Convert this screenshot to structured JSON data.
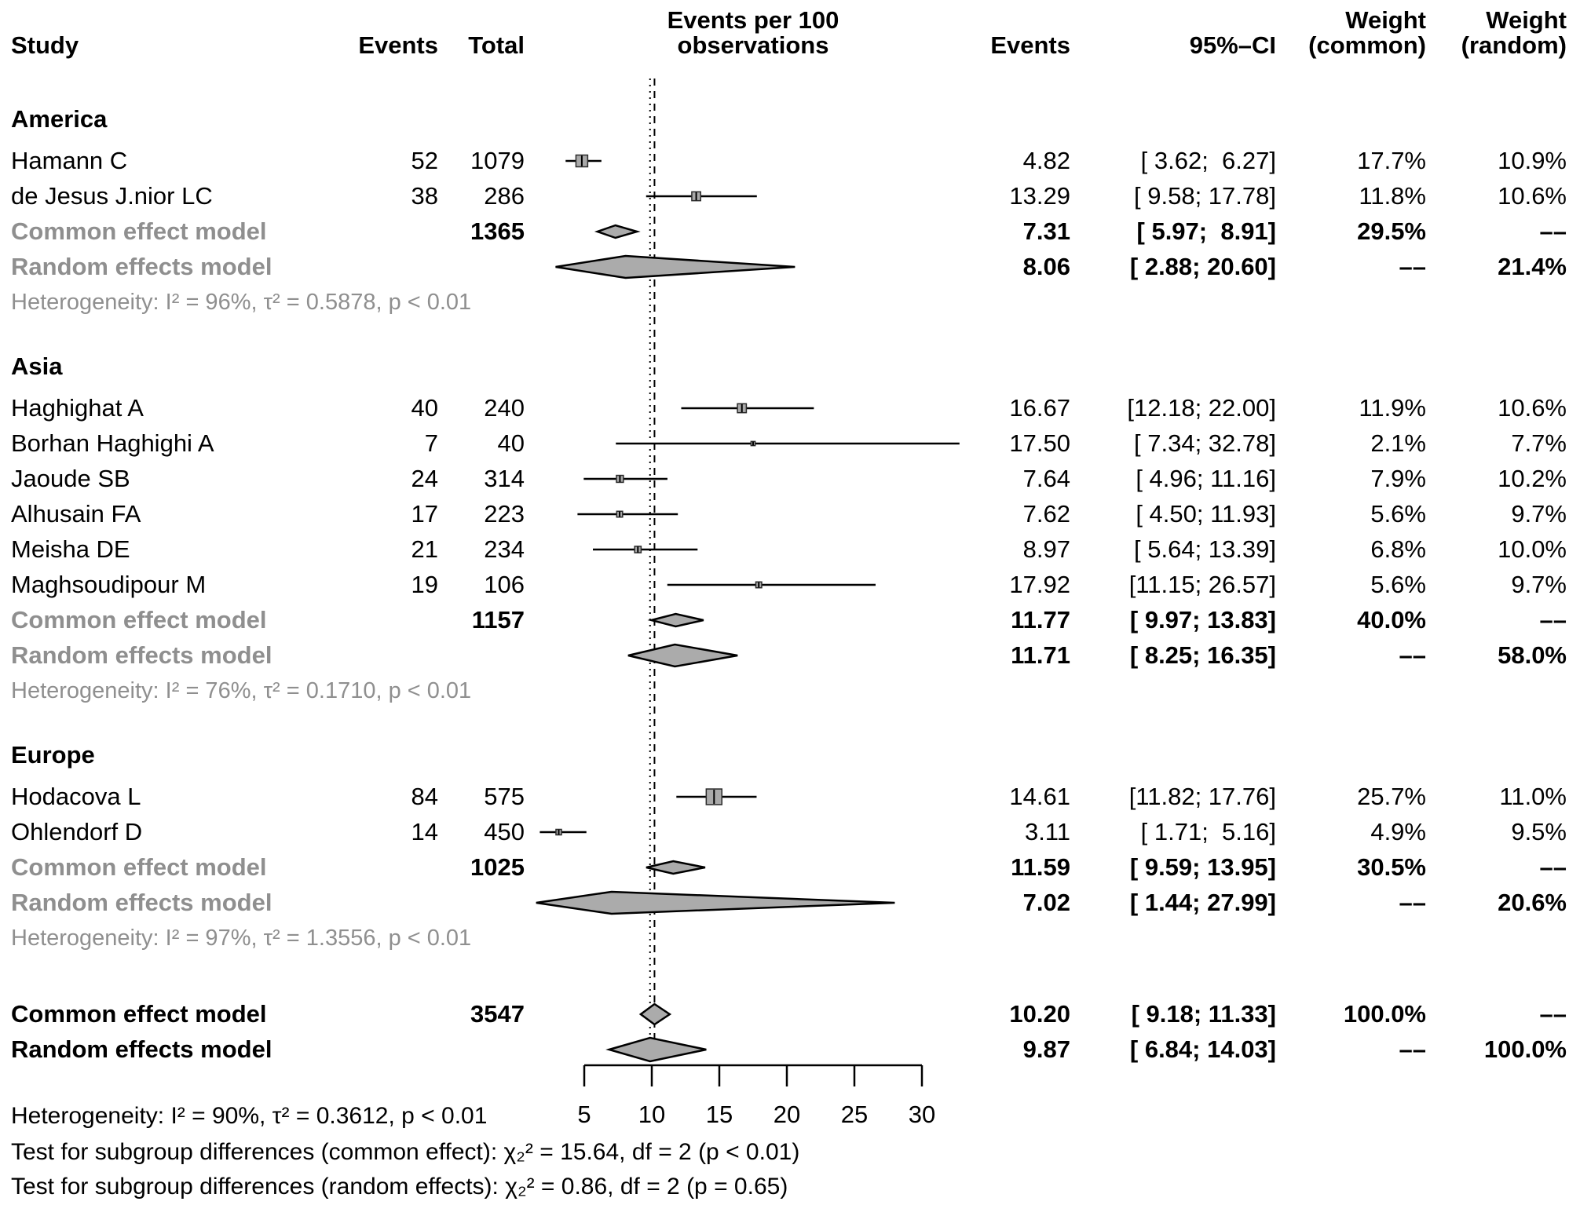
{
  "header": {
    "study": "Study",
    "events_left": "Events",
    "total": "Total",
    "plot_line1": "Events per 100",
    "plot_line2": "observations",
    "events_right": "Events",
    "ci": "95%–CI",
    "weight_common_line1": "Weight",
    "weight_common_line2": "(common)",
    "weight_random_line1": "Weight",
    "weight_random_line2": "(random)"
  },
  "footer": {
    "heterogeneity": "Heterogeneity: I² = 90%, τ² = 0.3612, p < 0.01",
    "test_common": "Test for subgroup differences (common effect): χ₂² = 15.64, df = 2 (p < 0.01)",
    "test_random": "Test for subgroup differences (random effects): χ₂² = 0.86, df = 2 (p = 0.65)"
  },
  "chart_data": {
    "type": "scatter",
    "variant": "forest-plot",
    "title": "Events per 100 observations",
    "xlabel": "Events per 100 observations",
    "x_ticks": [
      5,
      10,
      15,
      20,
      25,
      30
    ],
    "x_range": [
      5,
      30
    ],
    "grid": false,
    "legend": "none",
    "reference_lines": [
      {
        "value": 9.87,
        "style": "dotted",
        "meaning": "random effects overall estimate"
      },
      {
        "value": 10.2,
        "style": "dashed",
        "meaning": "common effect overall estimate"
      }
    ],
    "marker_color": "#a9a9a9",
    "diamond_color": "#ababab",
    "rows": [
      {
        "type": "group",
        "label": "America"
      },
      {
        "type": "study",
        "label": "Hamann C",
        "events": "52",
        "total": "1079",
        "effect": 4.82,
        "lo": 3.62,
        "hi": 6.27,
        "effect_str": "4.82",
        "ci_str": "[ 3.62;  6.27]",
        "wc": "17.7%",
        "wr": "10.9%"
      },
      {
        "type": "study",
        "label": "de Jesus J.nior LC",
        "events": "38",
        "total": "286",
        "effect": 13.29,
        "lo": 9.58,
        "hi": 17.78,
        "effect_str": "13.29",
        "ci_str": "[ 9.58; 17.78]",
        "wc": "11.8%",
        "wr": "10.6%"
      },
      {
        "type": "pooled-common",
        "scope": "subgroup",
        "label": "Common effect model",
        "total": "1365",
        "effect": 7.31,
        "lo": 5.97,
        "hi": 8.91,
        "effect_str": "7.31",
        "ci_str": "[ 5.97;  8.91]",
        "wc": "29.5%",
        "wr": "––"
      },
      {
        "type": "pooled-random",
        "scope": "subgroup",
        "label": "Random effects model",
        "effect": 8.06,
        "lo": 2.88,
        "hi": 20.6,
        "effect_str": "8.06",
        "ci_str": "[ 2.88; 20.60]",
        "wc": "––",
        "wr": "21.4%"
      },
      {
        "type": "het",
        "label": "Heterogeneity: I² = 96%, τ² = 0.5878, p < 0.01"
      },
      {
        "type": "group",
        "label": "Asia"
      },
      {
        "type": "study",
        "label": "Haghighat A",
        "events": "40",
        "total": "240",
        "effect": 16.67,
        "lo": 12.18,
        "hi": 22.0,
        "effect_str": "16.67",
        "ci_str": "[12.18; 22.00]",
        "wc": "11.9%",
        "wr": "10.6%"
      },
      {
        "type": "study",
        "label": "Borhan Haghighi A",
        "events": "7",
        "total": "40",
        "effect": 17.5,
        "lo": 7.34,
        "hi": 32.78,
        "effect_str": "17.50",
        "ci_str": "[ 7.34; 32.78]",
        "wc": "2.1%",
        "wr": "7.7%"
      },
      {
        "type": "study",
        "label": "Jaoude SB",
        "events": "24",
        "total": "314",
        "effect": 7.64,
        "lo": 4.96,
        "hi": 11.16,
        "effect_str": "7.64",
        "ci_str": "[ 4.96; 11.16]",
        "wc": "7.9%",
        "wr": "10.2%"
      },
      {
        "type": "study",
        "label": "Alhusain FA",
        "events": "17",
        "total": "223",
        "effect": 7.62,
        "lo": 4.5,
        "hi": 11.93,
        "effect_str": "7.62",
        "ci_str": "[ 4.50; 11.93]",
        "wc": "5.6%",
        "wr": "9.7%"
      },
      {
        "type": "study",
        "label": "Meisha DE",
        "events": "21",
        "total": "234",
        "effect": 8.97,
        "lo": 5.64,
        "hi": 13.39,
        "effect_str": "8.97",
        "ci_str": "[ 5.64; 13.39]",
        "wc": "6.8%",
        "wr": "10.0%"
      },
      {
        "type": "study",
        "label": "Maghsoudipour M",
        "events": "19",
        "total": "106",
        "effect": 17.92,
        "lo": 11.15,
        "hi": 26.57,
        "effect_str": "17.92",
        "ci_str": "[11.15; 26.57]",
        "wc": "5.6%",
        "wr": "9.7%"
      },
      {
        "type": "pooled-common",
        "scope": "subgroup",
        "label": "Common effect model",
        "total": "1157",
        "effect": 11.77,
        "lo": 9.97,
        "hi": 13.83,
        "effect_str": "11.77",
        "ci_str": "[ 9.97; 13.83]",
        "wc": "40.0%",
        "wr": "––"
      },
      {
        "type": "pooled-random",
        "scope": "subgroup",
        "label": "Random effects model",
        "effect": 11.71,
        "lo": 8.25,
        "hi": 16.35,
        "effect_str": "11.71",
        "ci_str": "[ 8.25; 16.35]",
        "wc": "––",
        "wr": "58.0%"
      },
      {
        "type": "het",
        "label": "Heterogeneity: I² = 76%, τ² = 0.1710, p < 0.01"
      },
      {
        "type": "group",
        "label": "Europe"
      },
      {
        "type": "study",
        "label": "Hodacova L",
        "events": "84",
        "total": "575",
        "effect": 14.61,
        "lo": 11.82,
        "hi": 17.76,
        "effect_str": "14.61",
        "ci_str": "[11.82; 17.76]",
        "wc": "25.7%",
        "wr": "11.0%"
      },
      {
        "type": "study",
        "label": "Ohlendorf D",
        "events": "14",
        "total": "450",
        "effect": 3.11,
        "lo": 1.71,
        "hi": 5.16,
        "effect_str": "3.11",
        "ci_str": "[ 1.71;  5.16]",
        "wc": "4.9%",
        "wr": "9.5%"
      },
      {
        "type": "pooled-common",
        "scope": "subgroup",
        "label": "Common effect model",
        "total": "1025",
        "effect": 11.59,
        "lo": 9.59,
        "hi": 13.95,
        "effect_str": "11.59",
        "ci_str": "[ 9.59; 13.95]",
        "wc": "30.5%",
        "wr": "––"
      },
      {
        "type": "pooled-random",
        "scope": "subgroup",
        "label": "Random effects model",
        "effect": 7.02,
        "lo": 1.44,
        "hi": 27.99,
        "effect_str": "7.02",
        "ci_str": "[ 1.44; 27.99]",
        "wc": "––",
        "wr": "20.6%"
      },
      {
        "type": "het",
        "label": "Heterogeneity: I² = 97%, τ² = 1.3556, p < 0.01"
      },
      {
        "type": "pooled-common",
        "scope": "overall",
        "overall_gap": true,
        "label": "Common effect model",
        "total": "3547",
        "effect": 10.2,
        "lo": 9.18,
        "hi": 11.33,
        "effect_str": "10.20",
        "ci_str": "[ 9.18; 11.33]",
        "wc": "100.0%",
        "wr": "––"
      },
      {
        "type": "pooled-random",
        "scope": "overall",
        "label": "Random effects model",
        "effect": 9.87,
        "lo": 6.84,
        "hi": 14.03,
        "effect_str": "9.87",
        "ci_str": "[ 6.84; 14.03]",
        "wc": "––",
        "wr": "100.0%"
      }
    ]
  }
}
